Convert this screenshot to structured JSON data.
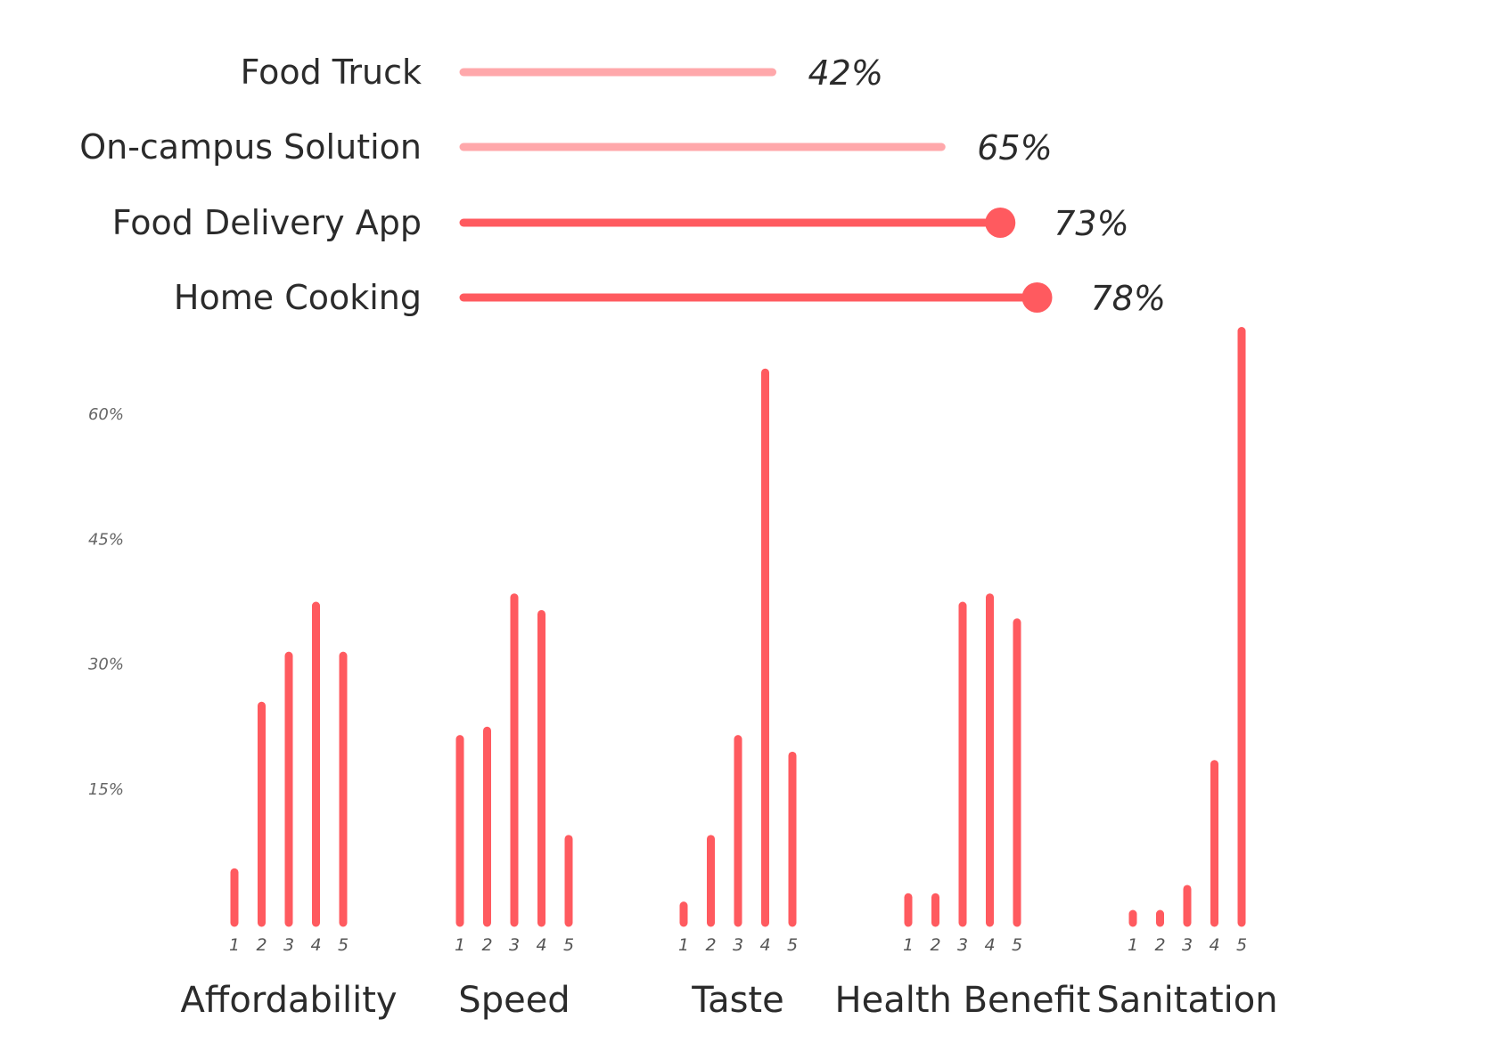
{
  "colors": {
    "accent": "#FF5A5F",
    "accent_light": "#FFA8AB",
    "text": "#2b2b2b",
    "tick": "#666666"
  },
  "chart_data": [
    {
      "type": "bar",
      "orientation": "horizontal",
      "categories": [
        "Food Truck",
        "On-campus Solution",
        "Food Delivery App",
        "Home Cooking"
      ],
      "values": [
        42,
        65,
        73,
        78
      ],
      "value_labels": [
        "42%",
        "65%",
        "73%",
        "78%"
      ],
      "highlighted": [
        false,
        false,
        true,
        true
      ],
      "xlim": [
        0,
        100
      ]
    },
    {
      "type": "bar",
      "groups": [
        "Affordability",
        "Speed",
        "Taste",
        "Health Benefit",
        "Sanitation"
      ],
      "ratings": [
        "1",
        "2",
        "3",
        "4",
        "5"
      ],
      "values": [
        [
          5,
          25,
          31,
          37,
          31
        ],
        [
          21,
          22,
          38,
          36,
          9
        ],
        [
          1,
          9,
          21,
          65,
          19
        ],
        [
          2,
          2,
          37,
          38,
          35
        ],
        [
          0,
          0,
          3,
          18,
          70
        ]
      ],
      "ylim": [
        0,
        72
      ],
      "yticks": [
        15,
        30,
        45,
        60
      ],
      "ytick_labels": [
        "15%",
        "30%",
        "45%",
        "60%"
      ]
    }
  ]
}
